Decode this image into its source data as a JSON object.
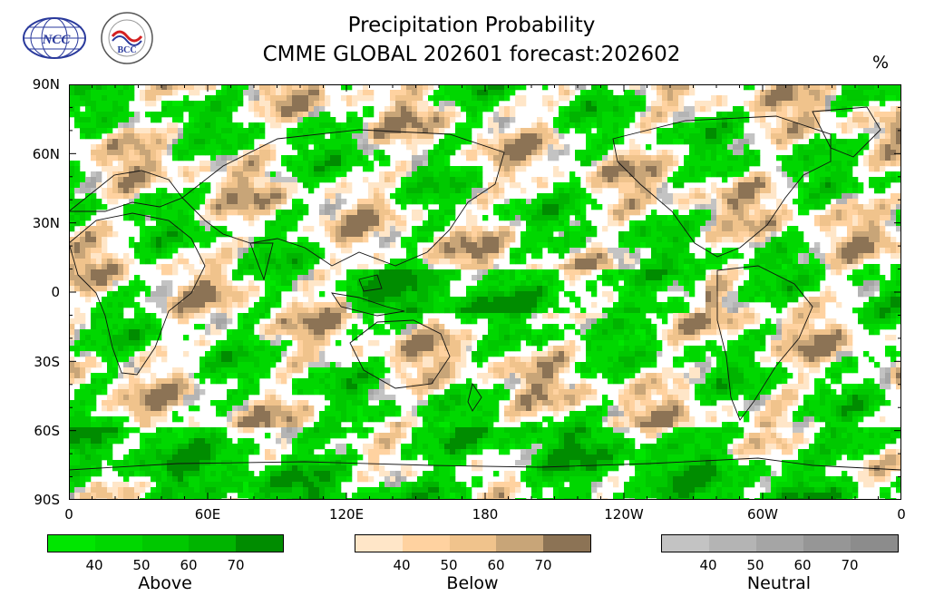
{
  "title": {
    "line1": "Precipitation Probability",
    "line2": "CMME GLOBAL 202601 forecast:202602",
    "unit": "%"
  },
  "logos": {
    "ncc": {
      "icon": "ncc-logo-icon",
      "text": "NCC"
    },
    "bcc": {
      "icon": "bcc-logo-icon",
      "text": "BCC"
    }
  },
  "axes": {
    "y_labels": [
      "90N",
      "60N",
      "30N",
      "0",
      "30S",
      "60S",
      "90S"
    ],
    "x_labels": [
      "0",
      "60E",
      "120E",
      "180",
      "120W",
      "60W",
      "0"
    ]
  },
  "legend": [
    {
      "name": "Above",
      "ticks": [
        "40",
        "50",
        "60",
        "70"
      ],
      "colors": [
        "#00e600",
        "#00d700",
        "#00c800",
        "#00b400",
        "#008c00"
      ]
    },
    {
      "name": "Below",
      "ticks": [
        "40",
        "50",
        "60",
        "70"
      ],
      "colors": [
        "#ffe6c8",
        "#ffd2a0",
        "#f0c38c",
        "#c8a578",
        "#8c7355"
      ]
    },
    {
      "name": "Neutral",
      "ticks": [
        "40",
        "50",
        "60",
        "70"
      ],
      "colors": [
        "#c3c3c3",
        "#b4b4b4",
        "#a5a5a5",
        "#969696",
        "#8c8c8c"
      ]
    }
  ]
}
